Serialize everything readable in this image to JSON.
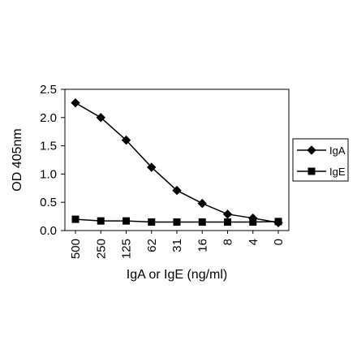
{
  "chart_data": {
    "type": "line",
    "categories": [
      "500",
      "250",
      "125",
      "62",
      "31",
      "16",
      "8",
      "4",
      "0"
    ],
    "series": [
      {
        "name": "IgA",
        "marker": "diamond",
        "color": "#000000",
        "values": [
          2.26,
          2.0,
          1.6,
          1.12,
          0.71,
          0.48,
          0.29,
          0.22,
          0.14
        ]
      },
      {
        "name": "IgE",
        "marker": "square",
        "color": "#000000",
        "values": [
          0.2,
          0.17,
          0.17,
          0.15,
          0.15,
          0.15,
          0.15,
          0.15,
          0.16
        ]
      }
    ],
    "ylabel": "OD 405nm",
    "xlabel": "IgA or IgE (ng/ml)",
    "ylim": [
      0,
      2.5
    ],
    "yticks": [
      "0.0",
      "0.5",
      "1.0",
      "1.5",
      "2.0",
      "2.5"
    ],
    "grid": false,
    "legend": "right"
  }
}
